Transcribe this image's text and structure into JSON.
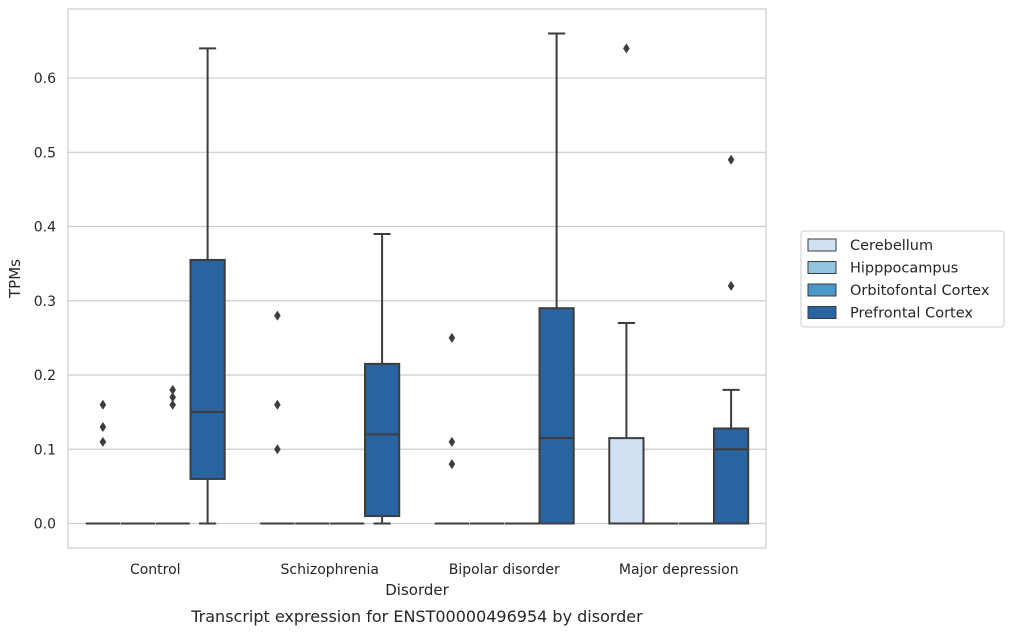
{
  "chart_data": {
    "type": "box",
    "title": "",
    "caption": "Transcript expression for ENST00000496954 by disorder",
    "xlabel": "Disorder",
    "ylabel": "TPMs",
    "ylim": [
      -0.033,
      0.693
    ],
    "yticks": [
      "0.0",
      "0.1",
      "0.2",
      "0.3",
      "0.4",
      "0.5",
      "0.6"
    ],
    "grid": true,
    "legend_position": "right",
    "categories": [
      "Control",
      "Schizophrenia",
      "Bipolar disorder",
      "Major depression"
    ],
    "series": [
      {
        "name": "Cerebellum",
        "color": "#d0e1f2",
        "boxes": [
          {
            "category": "Control",
            "whisker_low": 0,
            "q1": 0,
            "median": 0,
            "q3": 0,
            "whisker_high": 0,
            "outliers": [
              0.11,
              0.13,
              0.16
            ]
          },
          {
            "category": "Schizophrenia",
            "whisker_low": 0,
            "q1": 0,
            "median": 0,
            "q3": 0,
            "whisker_high": 0,
            "outliers": [
              0.1,
              0.16,
              0.28
            ]
          },
          {
            "category": "Bipolar disorder",
            "whisker_low": 0,
            "q1": 0,
            "median": 0,
            "q3": 0,
            "whisker_high": 0,
            "outliers": [
              0.08,
              0.11,
              0.25
            ]
          },
          {
            "category": "Major depression",
            "whisker_low": 0,
            "q1": 0,
            "median": 0,
            "q3": 0.115,
            "whisker_high": 0.27,
            "outliers": [
              0.64
            ]
          }
        ]
      },
      {
        "name": "Hipppocampus",
        "color": "#94c4df",
        "boxes": [
          {
            "category": "Control",
            "whisker_low": 0,
            "q1": 0,
            "median": 0,
            "q3": 0,
            "whisker_high": 0,
            "outliers": []
          },
          {
            "category": "Schizophrenia",
            "whisker_low": 0,
            "q1": 0,
            "median": 0,
            "q3": 0,
            "whisker_high": 0,
            "outliers": []
          },
          {
            "category": "Bipolar disorder",
            "whisker_low": 0,
            "q1": 0,
            "median": 0,
            "q3": 0,
            "whisker_high": 0,
            "outliers": []
          },
          {
            "category": "Major depression",
            "whisker_low": 0,
            "q1": 0,
            "median": 0,
            "q3": 0,
            "whisker_high": 0,
            "outliers": []
          }
        ]
      },
      {
        "name": "Orbitofontal Cortex",
        "color": "#4a98c9",
        "boxes": [
          {
            "category": "Control",
            "whisker_low": 0,
            "q1": 0,
            "median": 0,
            "q3": 0,
            "whisker_high": 0,
            "outliers": [
              0.16,
              0.17,
              0.18
            ]
          },
          {
            "category": "Schizophrenia",
            "whisker_low": 0,
            "q1": 0,
            "median": 0,
            "q3": 0,
            "whisker_high": 0,
            "outliers": []
          },
          {
            "category": "Bipolar disorder",
            "whisker_low": 0,
            "q1": 0,
            "median": 0,
            "q3": 0,
            "whisker_high": 0,
            "outliers": []
          },
          {
            "category": "Major depression",
            "whisker_low": 0,
            "q1": 0,
            "median": 0,
            "q3": 0,
            "whisker_high": 0,
            "outliers": []
          }
        ]
      },
      {
        "name": "Prefrontal Cortex",
        "color": "#2a64a0",
        "boxes": [
          {
            "category": "Control",
            "whisker_low": 0,
            "q1": 0.06,
            "median": 0.15,
            "q3": 0.355,
            "whisker_high": 0.64,
            "outliers": []
          },
          {
            "category": "Schizophrenia",
            "whisker_low": 0,
            "q1": 0.01,
            "median": 0.12,
            "q3": 0.215,
            "whisker_high": 0.39,
            "outliers": []
          },
          {
            "category": "Bipolar disorder",
            "whisker_low": 0,
            "q1": 0,
            "median": 0.115,
            "q3": 0.29,
            "whisker_high": 0.66,
            "outliers": []
          },
          {
            "category": "Major depression",
            "whisker_low": 0,
            "q1": 0,
            "median": 0.1,
            "q3": 0.128,
            "whisker_high": 0.18,
            "outliers": [
              0.32,
              0.49
            ]
          }
        ]
      }
    ]
  }
}
